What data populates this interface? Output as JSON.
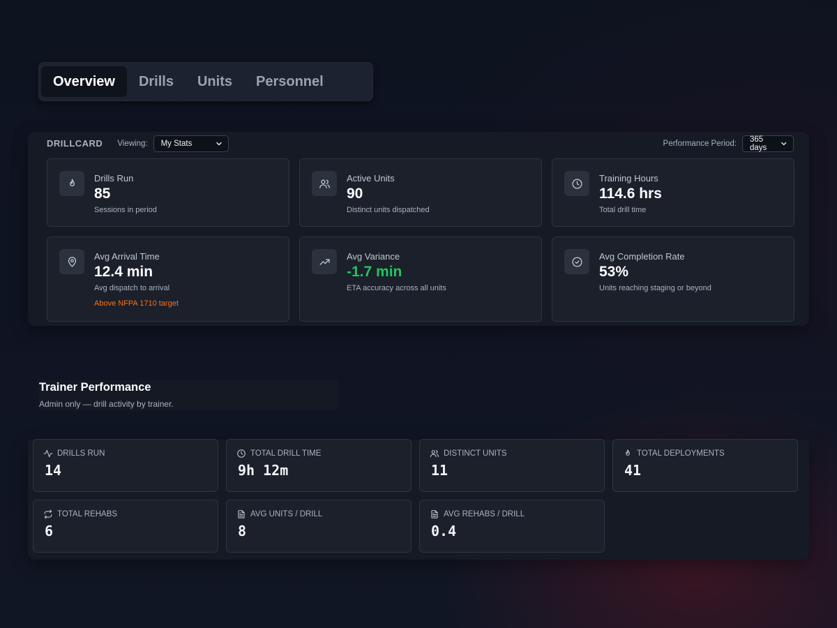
{
  "tabs": [
    {
      "label": "Overview",
      "active": true
    },
    {
      "label": "Drills",
      "active": false
    },
    {
      "label": "Units",
      "active": false
    },
    {
      "label": "Personnel",
      "active": false
    }
  ],
  "drillcard": {
    "brand": "DRILLCARD",
    "viewing_label": "Viewing:",
    "viewing_value": "My Stats",
    "period_label": "Performance Period:",
    "period_value": "365 days",
    "stats": [
      {
        "icon": "flame-icon",
        "label": "Drills Run",
        "value": "85",
        "sub": "Sessions in period"
      },
      {
        "icon": "users-icon",
        "label": "Active Units",
        "value": "90",
        "sub": "Distinct units dispatched"
      },
      {
        "icon": "clock-icon",
        "label": "Training Hours",
        "value": "114.6 hrs",
        "sub": "Total drill time"
      },
      {
        "icon": "map-pin-icon",
        "label": "Avg Arrival Time",
        "value": "12.4 min",
        "sub": "Avg dispatch to arrival",
        "warning": "Above NFPA 1710 target"
      },
      {
        "icon": "trending-up-icon",
        "label": "Avg Variance",
        "value": "-1.7 min",
        "sub": "ETA accuracy across all units",
        "value_color": "#22c55e"
      },
      {
        "icon": "check-circle-icon",
        "label": "Avg Completion Rate",
        "value": "53%",
        "sub": "Units reaching staging or beyond"
      }
    ]
  },
  "trainer": {
    "title": "Trainer Performance",
    "subtitle": "Admin only — drill activity by trainer.",
    "metrics": [
      {
        "icon": "activity-icon",
        "label": "DRILLS RUN",
        "value": "14"
      },
      {
        "icon": "clock-icon",
        "label": "TOTAL DRILL TIME",
        "value": "9h 12m"
      },
      {
        "icon": "users-icon",
        "label": "DISTINCT UNITS",
        "value": "11"
      },
      {
        "icon": "flame-icon",
        "label": "TOTAL DEPLOYMENTS",
        "value": "41"
      },
      {
        "icon": "repeat-icon",
        "label": "TOTAL REHABS",
        "value": "6"
      },
      {
        "icon": "file-text-icon",
        "label": "AVG UNITS / DRILL",
        "value": "8"
      },
      {
        "icon": "file-text-icon",
        "label": "AVG REHABS / DRILL",
        "value": "0.4"
      }
    ]
  }
}
